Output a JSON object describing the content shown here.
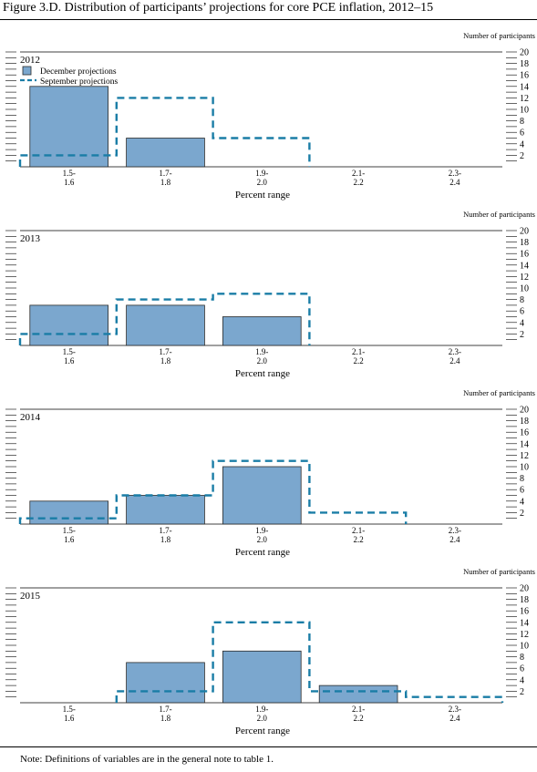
{
  "figure": {
    "title": "Figure 3.D. Distribution of participants’ projections for core PCE inflation, 2012–15",
    "note": "Note:  Definitions of variables are in the general note to table 1."
  },
  "colors": {
    "december_fill": "#7BA7CE",
    "december_stroke": "#2B2B2B",
    "september_line": "#1A7DA6",
    "axis": "#000000"
  },
  "chart_data": [
    {
      "type": "bar",
      "title": "2012",
      "xlabel": "Percent range",
      "ylabel": "Number of participants",
      "categories": [
        [
          "1.5-",
          "1.6"
        ],
        [
          "1.7-",
          "1.8"
        ],
        [
          "1.9-",
          "2.0"
        ],
        [
          "2.1-",
          "2.2"
        ],
        [
          "2.3-",
          "2.4"
        ]
      ],
      "ylim": [
        0,
        20
      ],
      "yticks": [
        2,
        4,
        6,
        8,
        10,
        12,
        14,
        16,
        18,
        20
      ],
      "legend": {
        "placement": "top-left",
        "entries": [
          "December projections",
          "September projections"
        ]
      },
      "series": [
        {
          "name": "December projections",
          "style": "bar",
          "values": [
            14,
            5,
            0,
            0,
            0
          ]
        },
        {
          "name": "September projections",
          "style": "dashed-step",
          "values": [
            2,
            12,
            5,
            0,
            0
          ]
        }
      ]
    },
    {
      "type": "bar",
      "title": "2013",
      "xlabel": "Percent range",
      "ylabel": "Number of participants",
      "categories": [
        [
          "1.5-",
          "1.6"
        ],
        [
          "1.7-",
          "1.8"
        ],
        [
          "1.9-",
          "2.0"
        ],
        [
          "2.1-",
          "2.2"
        ],
        [
          "2.3-",
          "2.4"
        ]
      ],
      "ylim": [
        0,
        20
      ],
      "yticks": [
        2,
        4,
        6,
        8,
        10,
        12,
        14,
        16,
        18,
        20
      ],
      "series": [
        {
          "name": "December projections",
          "style": "bar",
          "values": [
            7,
            7,
            5,
            0,
            0
          ]
        },
        {
          "name": "September projections",
          "style": "dashed-step",
          "values": [
            2,
            8,
            9,
            0,
            0
          ]
        }
      ]
    },
    {
      "type": "bar",
      "title": "2014",
      "xlabel": "Percent range",
      "ylabel": "Number of participants",
      "categories": [
        [
          "1.5-",
          "1.6"
        ],
        [
          "1.7-",
          "1.8"
        ],
        [
          "1.9-",
          "2.0"
        ],
        [
          "2.1-",
          "2.2"
        ],
        [
          "2.3-",
          "2.4"
        ]
      ],
      "ylim": [
        0,
        20
      ],
      "yticks": [
        2,
        4,
        6,
        8,
        10,
        12,
        14,
        16,
        18,
        20
      ],
      "series": [
        {
          "name": "December projections",
          "style": "bar",
          "values": [
            4,
            5,
            10,
            0,
            0
          ]
        },
        {
          "name": "September projections",
          "style": "dashed-step",
          "values": [
            1,
            5,
            11,
            2,
            0
          ]
        }
      ]
    },
    {
      "type": "bar",
      "title": "2015",
      "xlabel": "Percent range",
      "ylabel": "Number of participants",
      "categories": [
        [
          "1.5-",
          "1.6"
        ],
        [
          "1.7-",
          "1.8"
        ],
        [
          "1.9-",
          "2.0"
        ],
        [
          "2.1-",
          "2.2"
        ],
        [
          "2.3-",
          "2.4"
        ]
      ],
      "ylim": [
        0,
        20
      ],
      "yticks": [
        2,
        4,
        6,
        8,
        10,
        12,
        14,
        16,
        18,
        20
      ],
      "series": [
        {
          "name": "December projections",
          "style": "bar",
          "values": [
            0,
            7,
            9,
            3,
            0
          ]
        },
        {
          "name": "September projections",
          "style": "dashed-step",
          "values": [
            0,
            2,
            14,
            2,
            1
          ]
        }
      ]
    }
  ]
}
